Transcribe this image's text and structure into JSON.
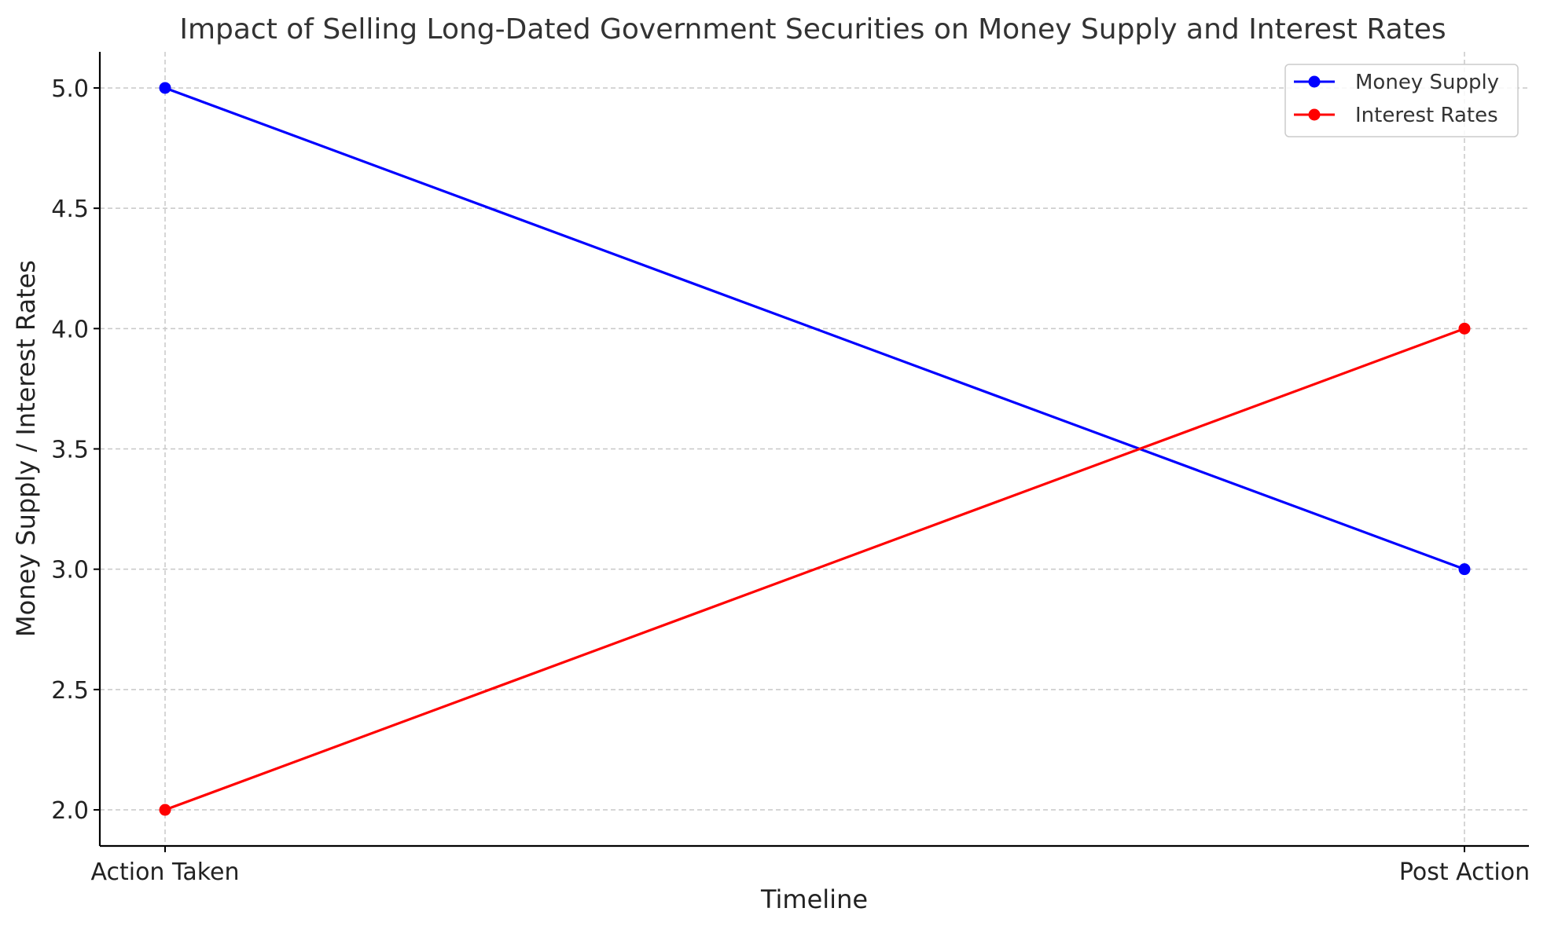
{
  "chart_data": {
    "type": "line",
    "title": "Impact of Selling Long-Dated Government Securities on Money Supply and Interest Rates",
    "xlabel": "Timeline",
    "ylabel": "Money Supply / Interest Rates",
    "categories": [
      "Action Taken",
      "Post Action"
    ],
    "series": [
      {
        "name": "Money Supply",
        "values": [
          5,
          3
        ],
        "color": "#0000ff"
      },
      {
        "name": "Interest Rates",
        "values": [
          2,
          4
        ],
        "color": "#ff0000"
      }
    ],
    "ylim": [
      1.85,
      5.15
    ],
    "yticks": [
      "2.0",
      "2.5",
      "3.0",
      "3.5",
      "4.0",
      "4.5",
      "5.0"
    ],
    "grid": true,
    "legend_position": "top-right"
  }
}
